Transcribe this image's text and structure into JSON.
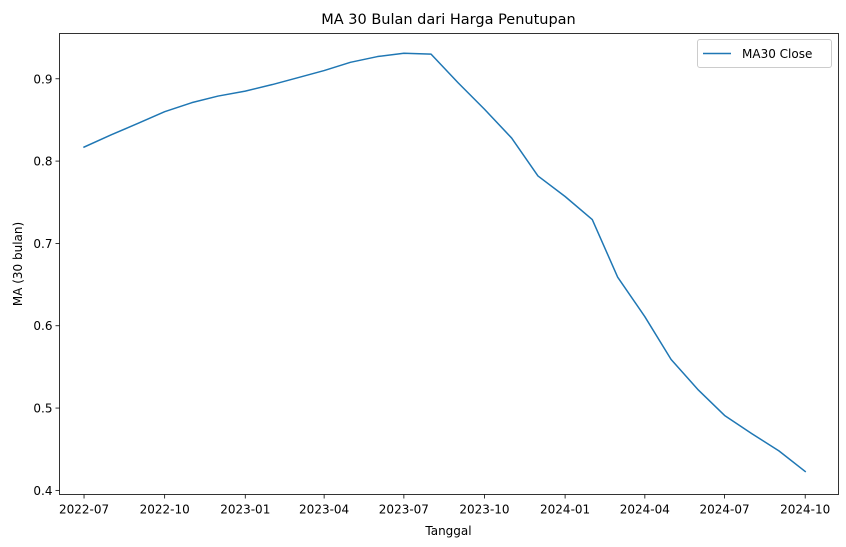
{
  "chart_data": {
    "type": "line",
    "title": "MA 30 Bulan dari Harga Penutupan",
    "xlabel": "Tanggal",
    "ylabel": "MA (30 bulan)",
    "xlim": [
      "2022-06-03",
      "2024-11-08"
    ],
    "ylim": [
      0.395,
      0.955
    ],
    "x_ticks": [
      "2022-07",
      "2022-10",
      "2023-01",
      "2023-04",
      "2023-07",
      "2023-10",
      "2024-01",
      "2024-04",
      "2024-07",
      "2024-10"
    ],
    "x_tick_dates": [
      "2022-07-01",
      "2022-10-01",
      "2023-01-01",
      "2023-04-01",
      "2023-07-01",
      "2023-10-01",
      "2024-01-01",
      "2024-04-01",
      "2024-07-01",
      "2024-10-01"
    ],
    "y_ticks": [
      "0.4",
      "0.5",
      "0.6",
      "0.7",
      "0.8",
      "0.9"
    ],
    "y_tick_values": [
      0.4,
      0.5,
      0.6,
      0.7,
      0.8,
      0.9
    ],
    "grid": false,
    "legend_position": "top-right",
    "series": [
      {
        "name": "MA30 Close",
        "color": "#1f77b4",
        "x": [
          "2022-07-01",
          "2022-08-01",
          "2022-09-01",
          "2022-10-01",
          "2022-11-01",
          "2022-12-01",
          "2023-01-01",
          "2023-02-01",
          "2023-03-01",
          "2023-04-01",
          "2023-05-01",
          "2023-06-01",
          "2023-07-01",
          "2023-08-01",
          "2023-09-01",
          "2023-10-01",
          "2023-11-01",
          "2023-12-01",
          "2024-01-01",
          "2024-02-01",
          "2024-03-01",
          "2024-04-01",
          "2024-05-01",
          "2024-06-01",
          "2024-07-01",
          "2024-08-01",
          "2024-09-01",
          "2024-10-01"
        ],
        "values": [
          0.817,
          0.832,
          0.846,
          0.86,
          0.871,
          0.879,
          0.885,
          0.893,
          0.901,
          0.91,
          0.92,
          0.927,
          0.931,
          0.93,
          0.895,
          0.863,
          0.828,
          0.782,
          0.757,
          0.729,
          0.659,
          0.611,
          0.559,
          0.522,
          0.491,
          0.469,
          0.448,
          0.423
        ]
      }
    ]
  }
}
